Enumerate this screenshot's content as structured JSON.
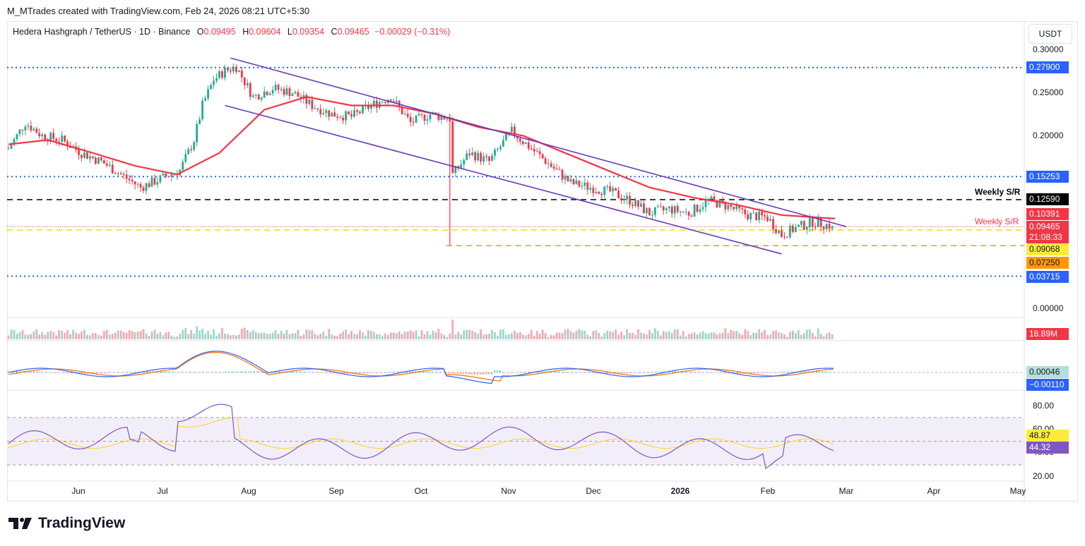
{
  "header": {
    "byline": "M_MTrades created with TradingView.com, Feb 24, 2026 08:21 UTC+5:30"
  },
  "legend": {
    "symbol": "Hedera Hashgraph / TetherUS · 1D · Binance",
    "o_label": "O",
    "o": "0.09495",
    "h_label": "H",
    "h": "0.09604",
    "l_label": "L",
    "l": "0.09354",
    "c_label": "C",
    "c": "0.09465",
    "change": "−0.00029 (−0.31%)"
  },
  "unit_button": "USDT",
  "price_axis_ticks": [
    "0.30000",
    "0.25000",
    "0.20000",
    "0.00000"
  ],
  "price_labels": {
    "l_2790": "0.27900",
    "l_1525": "0.15253",
    "l_1259": "0.12590",
    "l_1039": "0.10391",
    "l_0946": "0.09465",
    "countdown": "21:08:33",
    "l_0906": "0.09068",
    "l_0725": "0.07250",
    "l_0371": "0.03715"
  },
  "weekly_sr_label_1": "Weekly S/R",
  "weekly_sr_label_2": "Weekly S/R",
  "volume_label": "18.89M",
  "macd_labels": {
    "hist": "0.00046",
    "signal": "−0.00110"
  },
  "rsi_ticks": [
    "80.00",
    "60.00",
    "40.00",
    "20.00"
  ],
  "rsi_labels": {
    "ma": "48.87",
    "rsi": "44.32"
  },
  "x_axis": [
    "Jun",
    "Jul",
    "Aug",
    "Sep",
    "Oct",
    "Nov",
    "Dec",
    "2026",
    "Feb",
    "Mar",
    "Apr",
    "May"
  ],
  "footer_brand": "TradingView",
  "colors": {
    "up": "#22ab94",
    "down": "#f23645",
    "ema": "#f23645",
    "channel": "#673ab7",
    "dotted_level": "#2962ff",
    "black_level": "#000000",
    "yellow_level": "#f7dc00",
    "orange_level": "#ff9800",
    "macd_line": "#2962ff",
    "macd_signal": "#ff6d00",
    "rsi_line": "#7e57c2",
    "rsi_ma": "#fdd835"
  },
  "chart_data": {
    "type": "line",
    "title": "Hedera Hashgraph / TetherUS · 1D · Binance",
    "y_range": [
      0,
      0.3
    ],
    "horizontal_levels": [
      {
        "value": 0.279,
        "style": "dotted",
        "color": "#2962ff"
      },
      {
        "value": 0.15253,
        "style": "dotted",
        "color": "#2962ff"
      },
      {
        "value": 0.1259,
        "style": "dashed",
        "color": "#000000",
        "label": "Weekly S/R"
      },
      {
        "value": 0.09465,
        "style": "dotted",
        "color": "#f23645"
      },
      {
        "value": 0.09068,
        "style": "dashed",
        "color": "#f7dc00"
      },
      {
        "value": 0.0725,
        "style": "dashed",
        "color": "#ff9800"
      },
      {
        "value": 0.03715,
        "style": "dotted",
        "color": "#2962ff"
      }
    ],
    "close_series": {
      "name": "",
      "x": [
        "May 6",
        "May 12",
        "May 18",
        "May 25",
        "Jun 1",
        "Jun 8",
        "Jun 15",
        "Jun 22",
        "Jun 29",
        "Jul 6",
        "Jul 11",
        "Jul 14",
        "Jul 18",
        "Jul 22",
        "Jul 26",
        "Aug 1",
        "Aug 8",
        "Aug 15",
        "Aug 22",
        "Aug 29",
        "Sep 5",
        "Sep 12",
        "Sep 19",
        "Sep 26",
        "Oct 3",
        "Oct 10",
        "Oct 11",
        "Oct 17",
        "Oct 24",
        "Nov 1",
        "Nov 8",
        "Nov 15",
        "Nov 22",
        "Nov 29",
        "Dec 6",
        "Dec 13",
        "Dec 20",
        "Dec 27",
        "Jan 3",
        "Jan 10",
        "Jan 17",
        "Jan 24",
        "Jan 31",
        "Feb 5",
        "Feb 10",
        "Feb 16",
        "Feb 24"
      ],
      "values": [
        0.185,
        0.215,
        0.2,
        0.195,
        0.18,
        0.17,
        0.155,
        0.14,
        0.15,
        0.16,
        0.195,
        0.235,
        0.265,
        0.275,
        0.28,
        0.245,
        0.255,
        0.25,
        0.235,
        0.225,
        0.222,
        0.235,
        0.245,
        0.215,
        0.225,
        0.22,
        0.155,
        0.18,
        0.17,
        0.205,
        0.185,
        0.165,
        0.145,
        0.14,
        0.135,
        0.125,
        0.11,
        0.115,
        0.11,
        0.125,
        0.118,
        0.108,
        0.105,
        0.085,
        0.093,
        0.1,
        0.0946
      ]
    },
    "ema_series": {
      "name": "",
      "x": [
        "May 6",
        "May 20",
        "Jun 5",
        "Jun 20",
        "Jul 5",
        "Jul 20",
        "Aug 5",
        "Aug 20",
        "Sep 5",
        "Sep 20",
        "Oct 5",
        "Oct 20",
        "Nov 5",
        "Nov 20",
        "Dec 5",
        "Dec 20",
        "Jan 5",
        "Jan 20",
        "Feb 5",
        "Feb 24"
      ],
      "values": [
        0.19,
        0.195,
        0.18,
        0.165,
        0.155,
        0.18,
        0.23,
        0.245,
        0.235,
        0.235,
        0.225,
        0.21,
        0.2,
        0.18,
        0.16,
        0.14,
        0.128,
        0.12,
        0.108,
        0.1039
      ]
    },
    "channel": {
      "upper": [
        {
          "x": "Jul 24",
          "y": 0.29
        },
        {
          "x": "Feb 28",
          "y": 0.0946
        }
      ],
      "lower": [
        {
          "x": "Jul 22",
          "y": 0.235
        },
        {
          "x": "Feb 5",
          "y": 0.063
        }
      ]
    },
    "indicators": {
      "volume_last": "18.89M",
      "macd_hist": 0.00046,
      "macd_signal": -0.0011,
      "rsi": 44.32,
      "rsi_ma": 48.87,
      "rsi_range": [
        20,
        80
      ],
      "rsi_band": [
        30,
        70
      ]
    },
    "x_ticks": [
      "Jun",
      "Jul",
      "Aug",
      "Sep",
      "Oct",
      "Nov",
      "Dec",
      "2026",
      "Feb",
      "Mar",
      "Apr",
      "May"
    ]
  }
}
